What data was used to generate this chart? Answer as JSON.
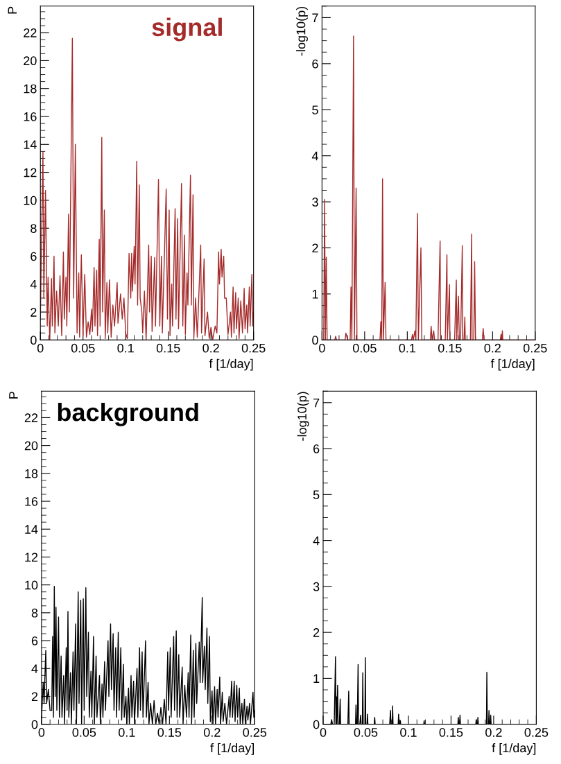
{
  "chart_data": [
    {
      "type": "line",
      "ylabel": "P",
      "xlabel": "f [1/day]",
      "annotations": [
        "signal"
      ],
      "xlim": [
        0,
        0.25
      ],
      "xticks": [
        0,
        0.05,
        0.1,
        0.15,
        0.2,
        0.25
      ],
      "ylim": [
        0,
        23.9
      ],
      "yticks": [
        0,
        2,
        4,
        6,
        8,
        10,
        12,
        14,
        16,
        18,
        20,
        22
      ],
      "grid": false,
      "legend": false,
      "series": [
        {
          "color": "#a52a2a",
          "x": [
            0,
            0.003,
            0.004,
            0.006,
            0.008,
            0.009,
            0.011,
            0.013,
            0.014,
            0.016,
            0.017,
            0.019,
            0.021,
            0.023,
            0.025,
            0.027,
            0.028,
            0.03,
            0.031,
            0.033,
            0.034,
            0.0375,
            0.039,
            0.041,
            0.043,
            0.045,
            0.046,
            0.048,
            0.05,
            0.052,
            0.054,
            0.056,
            0.058,
            0.06,
            0.061,
            0.063,
            0.064,
            0.066,
            0.067,
            0.069,
            0.07,
            0.072,
            0.073,
            0.075,
            0.076,
            0.078,
            0.079,
            0.081,
            0.083,
            0.085,
            0.087,
            0.09,
            0.091,
            0.094,
            0.096,
            0.098,
            0.1,
            0.102,
            0.104,
            0.106,
            0.107,
            0.108,
            0.11,
            0.111,
            0.113,
            0.114,
            0.116,
            0.117,
            0.119,
            0.12,
            0.122,
            0.124,
            0.127,
            0.128,
            0.13,
            0.131,
            0.134,
            0.135,
            0.1385,
            0.14,
            0.142,
            0.143,
            0.1475,
            0.149,
            0.151,
            0.152,
            0.154,
            0.155,
            0.158,
            0.159,
            0.161,
            0.162,
            0.1655,
            0.167,
            0.169,
            0.17,
            0.172,
            0.173,
            0.176,
            0.177,
            0.179,
            0.18,
            0.182,
            0.184,
            0.188,
            0.189,
            0.192,
            0.193,
            0.196,
            0.198,
            0.2,
            0.202,
            0.205,
            0.207,
            0.209,
            0.21,
            0.212,
            0.213,
            0.215,
            0.216,
            0.218,
            0.22,
            0.223,
            0.224,
            0.226,
            0.227,
            0.229,
            0.23,
            0.232,
            0.233,
            0.235,
            0.237,
            0.239,
            0.24,
            0.242,
            0.243,
            0.245,
            0.246,
            0.248,
            0.249,
            0.25
          ],
          "values": [
            1.5,
            13.5,
            3,
            10.7,
            1,
            4.5,
            0,
            4.4,
            1,
            6,
            0.5,
            3.5,
            1,
            4.6,
            0.3,
            6.3,
            1.5,
            4.5,
            1,
            9,
            2,
            21.6,
            3,
            14,
            0.5,
            4.8,
            0.2,
            6.1,
            0.3,
            4.7,
            0.2,
            1.3,
            0.4,
            2.2,
            0.6,
            5.2,
            1,
            5,
            0.3,
            7.2,
            1,
            14.5,
            2,
            9.3,
            0.1,
            4.1,
            0.5,
            4.3,
            0.2,
            2.5,
            1,
            4.1,
            1.2,
            3.3,
            1.5,
            3,
            0.5,
            0.1,
            6.2,
            3,
            6.2,
            3.5,
            6.7,
            4,
            12.8,
            2.5,
            11.1,
            3,
            2,
            0.5,
            3.5,
            0,
            6.8,
            2,
            6,
            0.6,
            5.9,
            1,
            11.5,
            1,
            6,
            0.5,
            10.8,
            1.5,
            9.3,
            0.3,
            4,
            1,
            9.4,
            1.5,
            8.7,
            0.8,
            11.2,
            1,
            7.5,
            0.4,
            4.8,
            2.5,
            11.8,
            2.5,
            10.4,
            0.2,
            3,
            0.2,
            6.8,
            0.5,
            5.8,
            0.3,
            2,
            0.1,
            0.9,
            0,
            1,
            0.5,
            6.3,
            4,
            6.5,
            4.5,
            6,
            3,
            3,
            0.4,
            2,
            0.2,
            3.8,
            0.5,
            3.4,
            0.8,
            3,
            0.1,
            2.8,
            0.5,
            3.7,
            0.8,
            2.5,
            0.5,
            3.8,
            1,
            4.7,
            1,
            2
          ]
        }
      ]
    },
    {
      "type": "line",
      "ylabel": "-log10(p)",
      "xlabel": "f [1/day]",
      "xlim": [
        0,
        0.25
      ],
      "xticks": [
        0,
        0.05,
        0.1,
        0.15,
        0.2,
        0.25
      ],
      "ylim": [
        0,
        7.25
      ],
      "yticks": [
        0,
        1,
        2,
        3,
        4,
        5,
        6,
        7
      ],
      "grid": false,
      "legend": false,
      "series": [
        {
          "color": "#a52a2a",
          "x": [
            0,
            0.002,
            0.003,
            0.004,
            0.005,
            0.006,
            0.015,
            0.016,
            0.017,
            0.027,
            0.028,
            0.03,
            0.033,
            0.034,
            0.035,
            0.037,
            0.038,
            0.04,
            0.041,
            0.068,
            0.069,
            0.07,
            0.071,
            0.072,
            0.074,
            0.075,
            0.105,
            0.106,
            0.107,
            0.109,
            0.11,
            0.112,
            0.113,
            0.116,
            0.117,
            0.127,
            0.128,
            0.129,
            0.131,
            0.132,
            0.136,
            0.1385,
            0.139,
            0.1445,
            0.1465,
            0.147,
            0.1495,
            0.15,
            0.1555,
            0.1575,
            0.158,
            0.16,
            0.161,
            0.1625,
            0.1645,
            0.165,
            0.1665,
            0.1675,
            0.168,
            0.174,
            0.1755,
            0.176,
            0.178,
            0.179,
            0.18,
            0.188,
            0.189,
            0.19,
            0.209,
            0.21,
            0.211,
            0.2115,
            0.212,
            0.25
          ],
          "values": [
            0,
            0,
            3.05,
            0,
            1.8,
            0,
            0,
            0.08,
            0,
            0,
            0.15,
            0,
            0,
            1.15,
            0,
            6.6,
            0,
            3.3,
            0,
            0,
            0.4,
            0,
            3.5,
            0,
            1.25,
            0,
            0,
            0.12,
            0,
            0.2,
            0,
            2.75,
            0,
            2,
            0,
            0,
            0.3,
            0,
            0.2,
            0,
            0,
            2.15,
            0,
            0,
            1.85,
            0,
            1.2,
            0,
            0,
            1.3,
            0,
            0.95,
            0,
            0,
            2.05,
            0,
            0,
            0.5,
            0,
            0,
            2.3,
            0,
            0,
            1.7,
            0,
            0,
            0.25,
            0,
            0,
            0.12,
            0,
            0.2,
            0,
            0
          ]
        }
      ]
    },
    {
      "type": "line",
      "ylabel": "P",
      "xlabel": "f [1/day]",
      "annotations": [
        "background"
      ],
      "xlim": [
        0,
        0.25
      ],
      "xticks": [
        0,
        0.05,
        0.1,
        0.15,
        0.2,
        0.25
      ],
      "ylim": [
        0,
        23.9
      ],
      "yticks": [
        0,
        2,
        4,
        6,
        8,
        10,
        12,
        14,
        16,
        18,
        20,
        22
      ],
      "grid": false,
      "legend": false,
      "series": [
        {
          "color": "#000000",
          "x": [
            0,
            0.002,
            0.003,
            0.005,
            0.006,
            0.008,
            0.01,
            0.012,
            0.013,
            0.014,
            0.015,
            0.016,
            0.017,
            0.018,
            0.02,
            0.021,
            0.023,
            0.024,
            0.026,
            0.027,
            0.029,
            0.03,
            0.031,
            0.032,
            0.034,
            0.035,
            0.037,
            0.038,
            0.04,
            0.041,
            0.043,
            0.044,
            0.046,
            0.047,
            0.049,
            0.05,
            0.052,
            0.053,
            0.055,
            0.056,
            0.058,
            0.059,
            0.061,
            0.062,
            0.064,
            0.065,
            0.068,
            0.069,
            0.071,
            0.072,
            0.074,
            0.075,
            0.078,
            0.079,
            0.081,
            0.082,
            0.084,
            0.085,
            0.087,
            0.088,
            0.09,
            0.091,
            0.093,
            0.094,
            0.096,
            0.097,
            0.099,
            0.1,
            0.102,
            0.103,
            0.105,
            0.106,
            0.108,
            0.109,
            0.112,
            0.113,
            0.115,
            0.116,
            0.118,
            0.119,
            0.122,
            0.123,
            0.125,
            0.126,
            0.128,
            0.13,
            0.132,
            0.134,
            0.136,
            0.138,
            0.14,
            0.142,
            0.144,
            0.146,
            0.148,
            0.149,
            0.151,
            0.152,
            0.155,
            0.156,
            0.158,
            0.159,
            0.161,
            0.162,
            0.165,
            0.166,
            0.168,
            0.17,
            0.172,
            0.173,
            0.175,
            0.176,
            0.178,
            0.179,
            0.181,
            0.182,
            0.185,
            0.186,
            0.1885,
            0.189,
            0.191,
            0.192,
            0.194,
            0.195,
            0.197,
            0.198,
            0.2,
            0.201,
            0.203,
            0.204,
            0.206,
            0.207,
            0.209,
            0.21,
            0.212,
            0.213,
            0.215,
            0.217,
            0.22,
            0.221,
            0.223,
            0.224,
            0.226,
            0.227,
            0.229,
            0.23,
            0.232,
            0.233,
            0.235,
            0.236,
            0.238,
            0.239,
            0.241,
            0.242,
            0.244,
            0.245,
            0.248,
            0.249,
            0.25
          ],
          "values": [
            0.5,
            3,
            1.5,
            5.3,
            1.5,
            2.5,
            1,
            1,
            6.3,
            0.5,
            9.9,
            2,
            8.4,
            1,
            7.7,
            0.5,
            4.9,
            0.5,
            3.5,
            0,
            5.5,
            1,
            8.1,
            0.5,
            3.7,
            0,
            5.2,
            1,
            7.2,
            0,
            9.5,
            1.5,
            8.9,
            0,
            9,
            1,
            9.8,
            2,
            6.6,
            0.5,
            3.8,
            0.5,
            6.3,
            0,
            4.9,
            0.5,
            3.5,
            0,
            2.9,
            0.5,
            4.5,
            1,
            6,
            2,
            7.2,
            2.5,
            6.5,
            1,
            5.5,
            0.5,
            6.6,
            1,
            5.5,
            0.3,
            4.3,
            0.5,
            2,
            0,
            2.6,
            0,
            3.5,
            0.5,
            3.1,
            0,
            4,
            0.5,
            5.5,
            1,
            5.2,
            0.5,
            6,
            0.5,
            3,
            0,
            1.5,
            0,
            1.7,
            0,
            0.8,
            0,
            1.2,
            0,
            1.8,
            0,
            5.2,
            1,
            5.5,
            0.5,
            6.3,
            1,
            6.7,
            0.5,
            5,
            0.5,
            4.1,
            0,
            2.8,
            0.5,
            3.7,
            0.5,
            6.4,
            0,
            5.3,
            0.5,
            5.8,
            1.5,
            5.9,
            3,
            9.1,
            3,
            5.6,
            2.5,
            6.9,
            1.5,
            6.3,
            0.2,
            2.4,
            0,
            2.7,
            0,
            2.5,
            0.5,
            3.4,
            0,
            2.3,
            0.2,
            1.5,
            0,
            2,
            0.5,
            3.1,
            0.5,
            3.1,
            0.2,
            2.8,
            0.5,
            2.6,
            0,
            1.5,
            0,
            1.8,
            0,
            1.3,
            0.3,
            1.5,
            0,
            2.3,
            0.5,
            1
          ]
        }
      ]
    },
    {
      "type": "line",
      "ylabel": "-log10(p)",
      "xlabel": "f [1/day]",
      "xlim": [
        0,
        0.25
      ],
      "xticks": [
        0,
        0.05,
        0.1,
        0.15,
        0.2,
        0.25
      ],
      "ylim": [
        0,
        7.25
      ],
      "yticks": [
        0,
        1,
        2,
        3,
        4,
        5,
        6,
        7
      ],
      "grid": false,
      "legend": false,
      "series": [
        {
          "color": "#000000",
          "x": [
            0,
            0.009,
            0.01,
            0.011,
            0.013,
            0.0145,
            0.015,
            0.0155,
            0.016,
            0.017,
            0.0175,
            0.019,
            0.02,
            0.0205,
            0.029,
            0.03,
            0.0305,
            0.038,
            0.0385,
            0.039,
            0.04,
            0.041,
            0.0415,
            0.043,
            0.044,
            0.0445,
            0.046,
            0.0465,
            0.047,
            0.049,
            0.0495,
            0.05,
            0.0515,
            0.052,
            0.0525,
            0.06,
            0.0605,
            0.061,
            0.078,
            0.079,
            0.0795,
            0.081,
            0.0815,
            0.082,
            0.088,
            0.0885,
            0.089,
            0.09,
            0.0905,
            0.091,
            0.118,
            0.1185,
            0.119,
            0.158,
            0.1585,
            0.159,
            0.16,
            0.1605,
            0.161,
            0.179,
            0.1795,
            0.18,
            0.181,
            0.1815,
            0.182,
            0.1915,
            0.192,
            0.1925,
            0.194,
            0.1945,
            0.195,
            0.196,
            0.1965,
            0.197,
            0.25
          ],
          "values": [
            0,
            0,
            0.1,
            0,
            0,
            1.47,
            0,
            0.6,
            0,
            0.85,
            0,
            0,
            0.55,
            0,
            0,
            0.72,
            0,
            0,
            0.42,
            0,
            0,
            1.3,
            0,
            0,
            0.2,
            0,
            0,
            1.12,
            0,
            0,
            1.45,
            0,
            0,
            0.22,
            0,
            0,
            0.15,
            0,
            0,
            0.3,
            0,
            0,
            0.4,
            0,
            0,
            0.22,
            0,
            0,
            0.08,
            0,
            0,
            0.08,
            0,
            0,
            0.15,
            0,
            0,
            0.2,
            0,
            0,
            0.1,
            0,
            0,
            0.15,
            0,
            0,
            1.13,
            0,
            0,
            0.3,
            0,
            0,
            0.2,
            0,
            0
          ]
        }
      ]
    }
  ]
}
